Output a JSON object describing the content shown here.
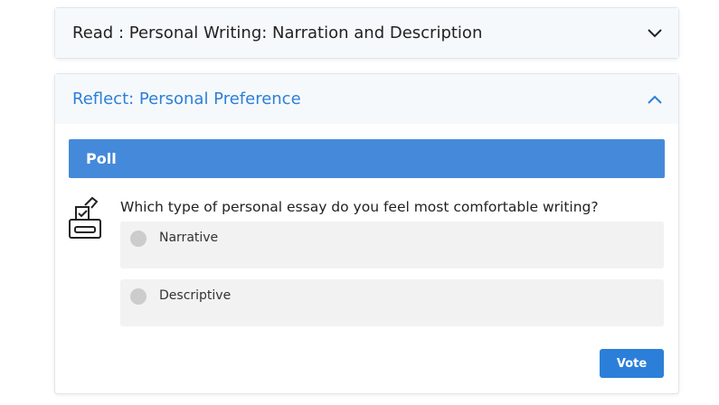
{
  "sections": [
    {
      "title": "Read : Personal Writing: Narration and Description",
      "icon": "chevron-down-icon"
    },
    {
      "title": "Reflect: Personal Preference",
      "icon": "chevron-up-icon"
    }
  ],
  "poll": {
    "heading": "Poll",
    "question": "Which type of personal essay do you feel most comfortable writing?",
    "options": [
      {
        "label": "Narrative"
      },
      {
        "label": "Descriptive"
      }
    ],
    "vote_label": "Vote",
    "icon": "ballot-box-icon"
  }
}
